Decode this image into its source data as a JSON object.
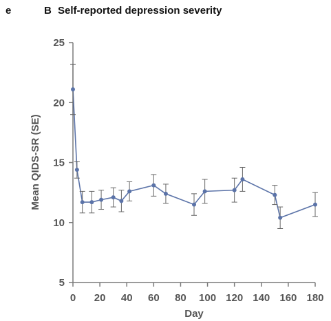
{
  "figure": {
    "panel_letter": "e",
    "sub_letter": "B",
    "title": "Self-reported depression severity"
  },
  "chart_data": {
    "type": "line",
    "title": "Self-reported depression severity",
    "xlabel": "Day",
    "ylabel": "Mean QIDS-SR (SE)",
    "xlim": [
      0,
      180
    ],
    "ylim": [
      5,
      25
    ],
    "xticks": [
      0,
      20,
      40,
      60,
      80,
      100,
      120,
      140,
      160,
      180
    ],
    "yticks": [
      5,
      10,
      15,
      20,
      25
    ],
    "grid": false,
    "legend": "none",
    "series": [
      {
        "color": "#5b73a8",
        "points": [
          {
            "x": 0,
            "y": 21.1,
            "se": 2.1
          },
          {
            "x": 3,
            "y": 14.4,
            "se": 0.7
          },
          {
            "x": 7,
            "y": 11.7,
            "se": 0.9
          },
          {
            "x": 14,
            "y": 11.7,
            "se": 0.9
          },
          {
            "x": 21,
            "y": 11.9,
            "se": 0.8
          },
          {
            "x": 30,
            "y": 12.1,
            "se": 0.8
          },
          {
            "x": 36,
            "y": 11.8,
            "se": 0.9
          },
          {
            "x": 42,
            "y": 12.6,
            "se": 0.8
          },
          {
            "x": 60,
            "y": 13.1,
            "se": 0.9
          },
          {
            "x": 69,
            "y": 12.4,
            "se": 0.8
          },
          {
            "x": 90,
            "y": 11.5,
            "se": 0.9
          },
          {
            "x": 98,
            "y": 12.6,
            "se": 1.0
          },
          {
            "x": 120,
            "y": 12.7,
            "se": 1.0
          },
          {
            "x": 126,
            "y": 13.6,
            "se": 1.0
          },
          {
            "x": 150,
            "y": 12.3,
            "se": 0.8
          },
          {
            "x": 154,
            "y": 10.4,
            "se": 0.9
          },
          {
            "x": 180,
            "y": 11.5,
            "se": 1.0
          }
        ]
      }
    ]
  }
}
